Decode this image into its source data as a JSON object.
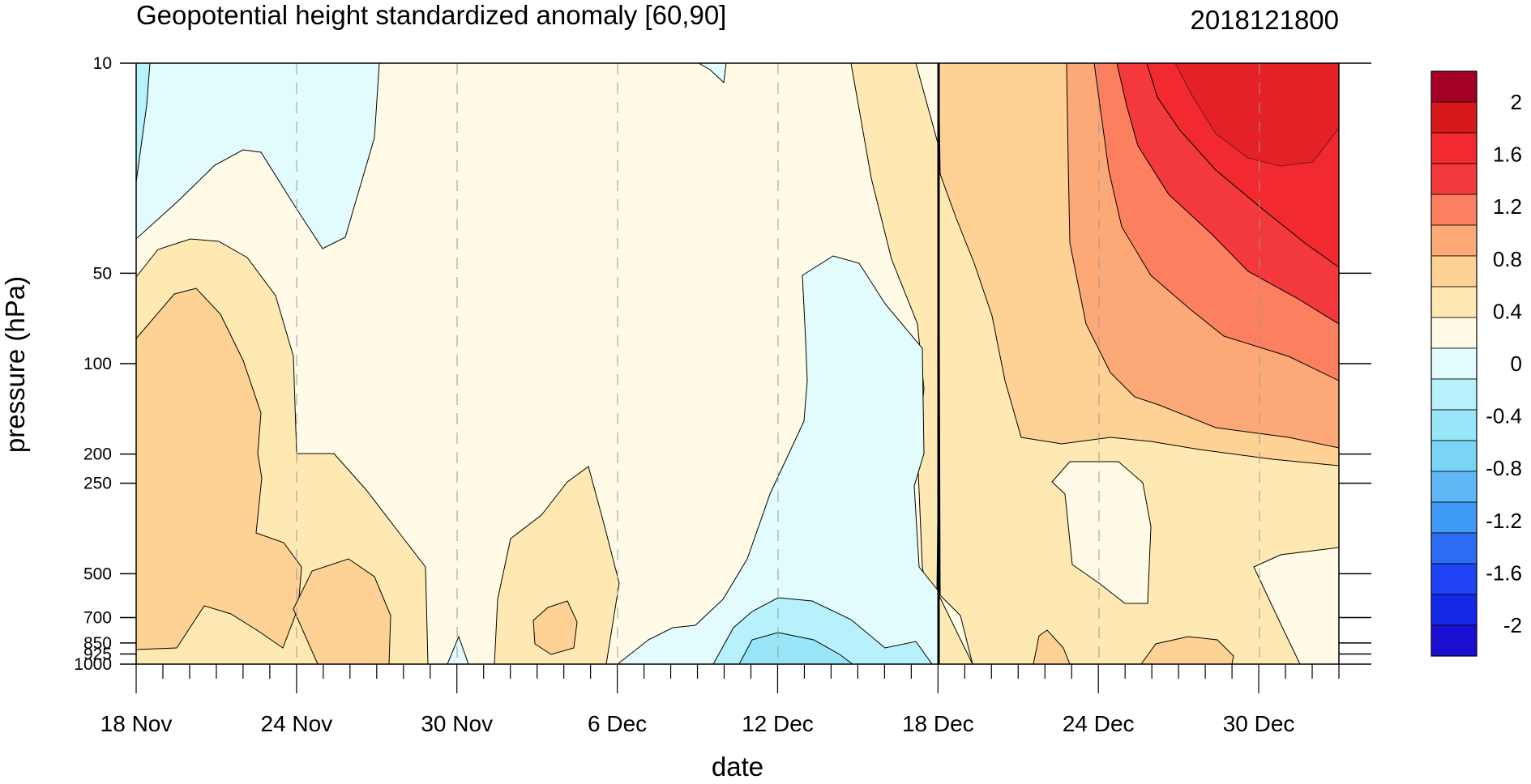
{
  "chart_data": {
    "type": "heatmap",
    "title": "Geopotential height standardized anomaly [60,90]",
    "right_title": "2018121800",
    "xlabel": "date",
    "ylabel": "pressure (hPa)",
    "x_ticks": [
      "18 Nov",
      "24 Nov",
      "30 Nov",
      "6 Dec",
      "12 Dec",
      "18 Dec",
      "24 Dec",
      "30 Dec"
    ],
    "x_range_days": [
      0,
      45
    ],
    "y_ticks": [
      "10",
      "50",
      "100",
      "200",
      "250",
      "500",
      "700",
      "850",
      "925",
      "1000"
    ],
    "y_tick_values": [
      10,
      50,
      100,
      200,
      250,
      500,
      700,
      850,
      925,
      1000
    ],
    "y_scale": "reversed-log",
    "vertical_marker": "18 Dec",
    "colorbar": {
      "labels": [
        "2",
        "1.6",
        "1.2",
        "0.8",
        "0.4",
        "0",
        "-0.4",
        "-0.8",
        "-1.2",
        "-1.6",
        "-2"
      ],
      "colors": [
        "#a50026",
        "#d7191c",
        "#f22a2f",
        "#f4393c",
        "#fc8060",
        "#fca877",
        "#fed194",
        "#fee9b3",
        "#fffbe6",
        "#e2fbfd",
        "#b7f1fb",
        "#98e5f8",
        "#7ad5f5",
        "#5fb8f5",
        "#3e9af5",
        "#2d6df5",
        "#1f43f2",
        "#1526e5",
        "#1a0fd0"
      ]
    },
    "regions": [
      {
        "level": "0.6 to 1.0",
        "period": "18 Nov - 20 Nov",
        "pressure": "70 - 900"
      },
      {
        "level": "0.2 to 0.6",
        "period": "18 Nov - 28 Nov",
        "pressure": "40 - 1000"
      },
      {
        "level": "-0.2 to 0",
        "period": "19 Nov - 27 Nov",
        "pressure": "10 - 45"
      },
      {
        "level": "-0.4 to -0.2",
        "period": "12 Dec - 17 Dec",
        "pressure": "50 - 1000"
      },
      {
        "level": "-0.8 to -0.4",
        "period": "11 Dec - 16 Dec",
        "pressure": "850 - 1000"
      },
      {
        "level": "1.2 to 1.6",
        "period": "25 Dec - 2 Jan",
        "pressure": "10 - 100"
      },
      {
        "level": "0.8 to 1.2",
        "period": "23 Dec - 2 Jan",
        "pressure": "10 - 150"
      },
      {
        "level": "0 to 0.2",
        "period": "23 Dec - 25 Dec",
        "pressure": "250 - 650"
      }
    ]
  }
}
